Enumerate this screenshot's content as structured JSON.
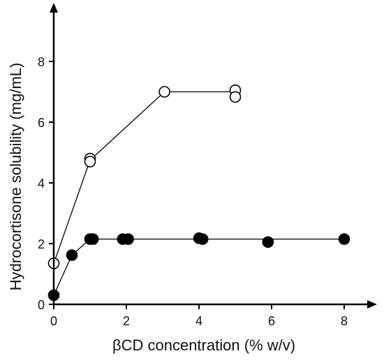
{
  "chart_data": {
    "type": "scatter",
    "title": "",
    "xlabel": "βCD concentration  (% w/v)",
    "ylabel": "Hydrocortisone solubility  (mg/mL)",
    "xlim": [
      0,
      8.4
    ],
    "ylim": [
      0,
      9.7
    ],
    "x_ticks": [
      0,
      2,
      4,
      6,
      8
    ],
    "y_ticks": [
      0,
      2,
      4,
      6,
      8
    ],
    "grid": false,
    "legend": "none",
    "series": [
      {
        "marker": "open-circle",
        "line_color": "#000000",
        "marker_fill": "#ffffff",
        "points": [
          [
            0,
            1.35
          ],
          [
            1.0,
            4.8
          ],
          [
            1.0,
            4.7
          ],
          [
            3.05,
            7.0
          ],
          [
            5.0,
            7.05
          ],
          [
            5.0,
            6.83
          ]
        ],
        "line": [
          [
            0,
            1.35
          ],
          [
            1.0,
            4.75
          ],
          [
            3.05,
            7.0
          ],
          [
            5.0,
            7.0
          ]
        ]
      },
      {
        "marker": "filled-circle",
        "line_color": "#000000",
        "marker_fill": "#000000",
        "points": [
          [
            0,
            0.3
          ],
          [
            0.5,
            1.62
          ],
          [
            1.0,
            2.15
          ],
          [
            1.08,
            2.15
          ],
          [
            1.9,
            2.15
          ],
          [
            2.05,
            2.15
          ],
          [
            4.0,
            2.18
          ],
          [
            4.1,
            2.15
          ],
          [
            5.9,
            2.05
          ],
          [
            8.0,
            2.15
          ]
        ],
        "line": [
          [
            0,
            0.3
          ],
          [
            0.5,
            1.62
          ],
          [
            1.0,
            2.15
          ],
          [
            8.0,
            2.15
          ]
        ]
      }
    ]
  }
}
